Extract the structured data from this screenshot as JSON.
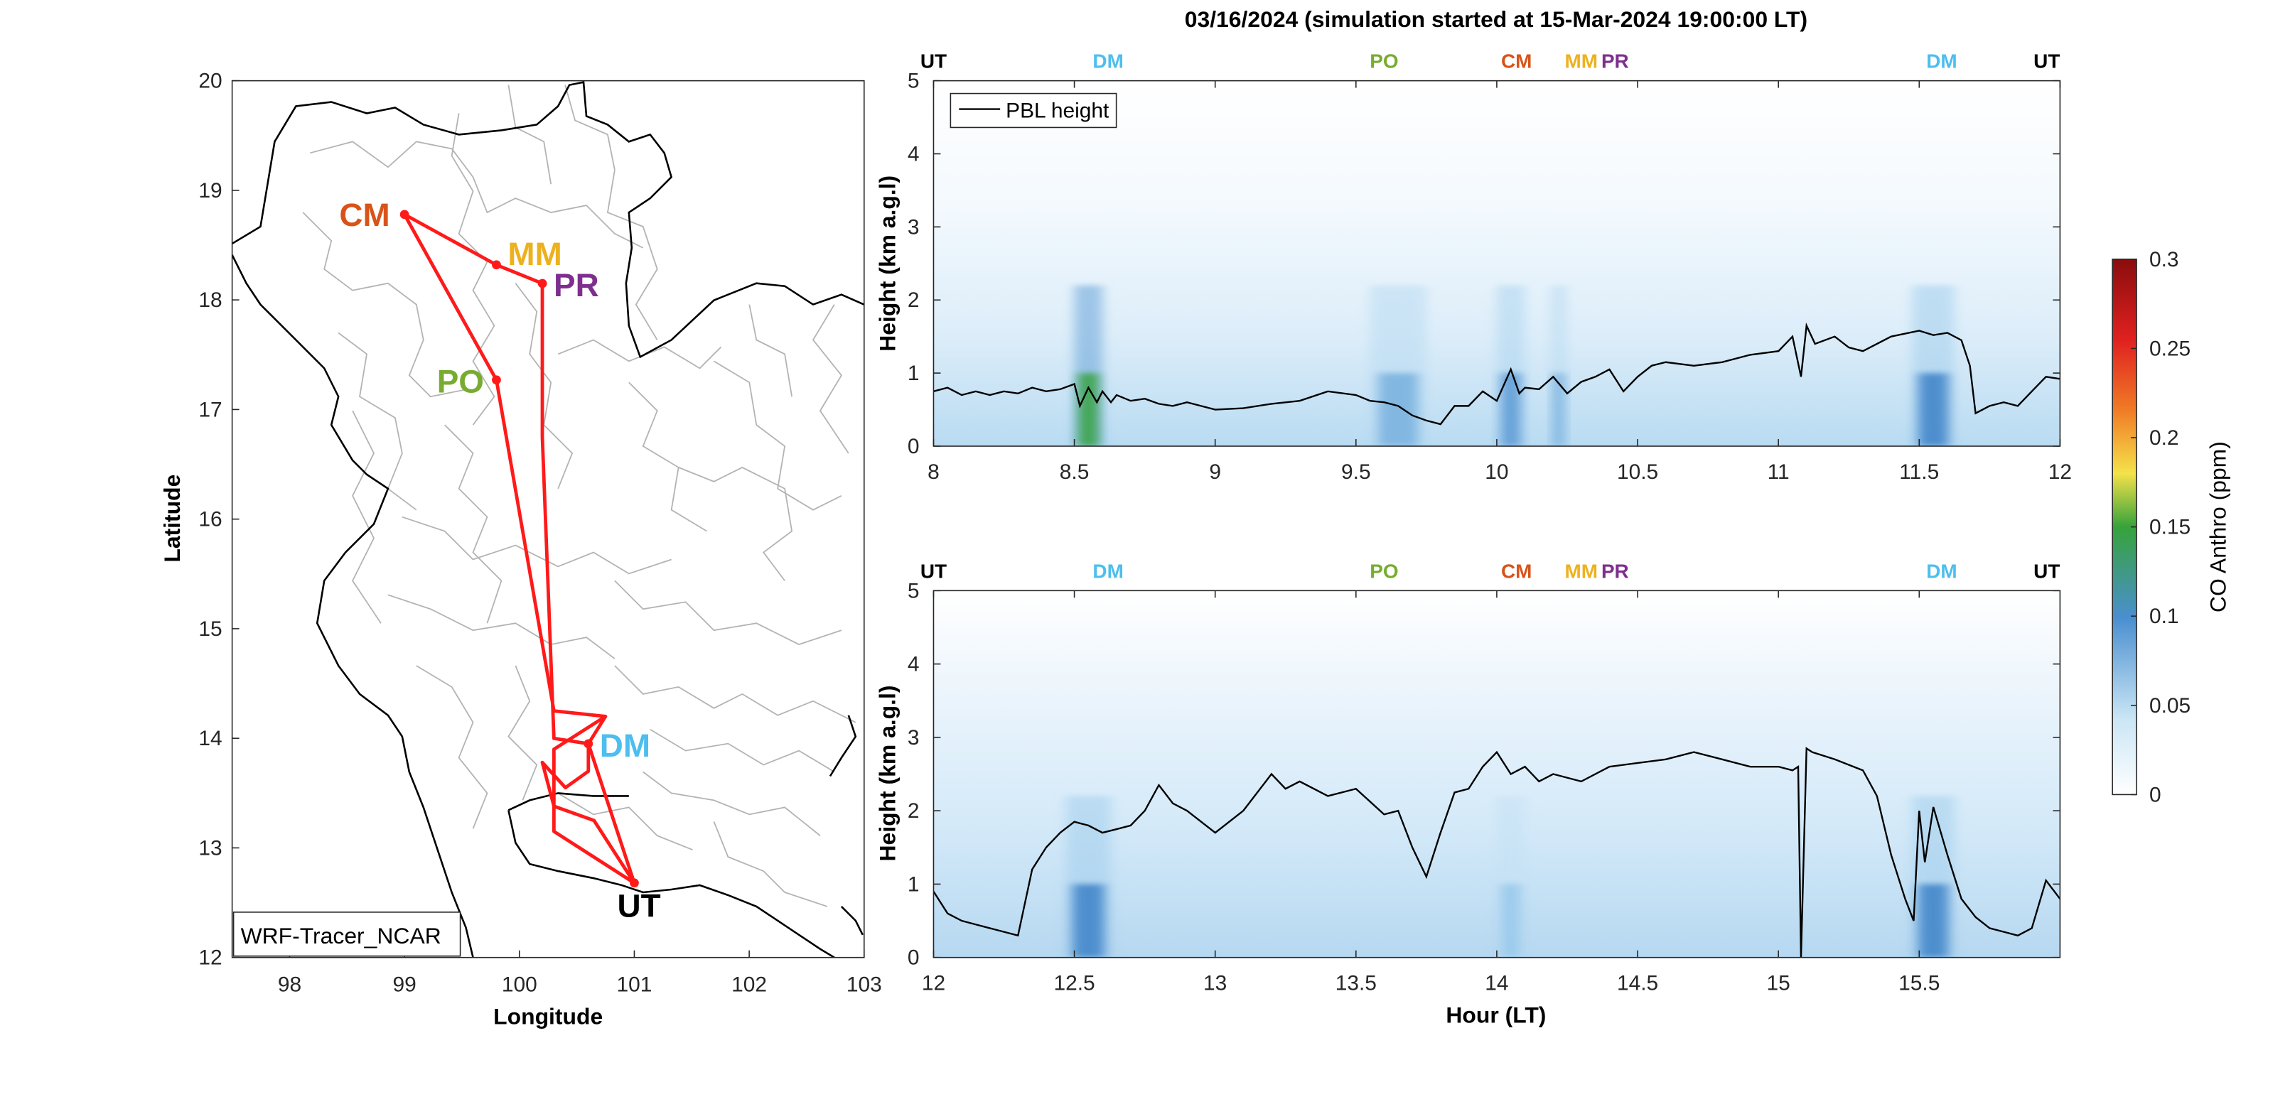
{
  "figure": {
    "title": "03/16/2024 (simulation started at 15-Mar-2024 19:00:00 LT)"
  },
  "chart_data": [
    {
      "type": "map",
      "xlabel": "Longitude",
      "ylabel": "Latitude",
      "xlim": [
        97.5,
        103
      ],
      "ylim": [
        12,
        20
      ],
      "xticks": [
        "98",
        "99",
        "100",
        "101",
        "102",
        "103"
      ],
      "yticks": [
        "12",
        "13",
        "14",
        "15",
        "16",
        "17",
        "18",
        "19",
        "20"
      ],
      "legend_box": "WRF-Tracer_NCAR",
      "route_color": "#ff1a1a",
      "route": [
        [
          101.0,
          12.68
        ],
        [
          100.6,
          13.95
        ],
        [
          100.3,
          14.0
        ],
        [
          100.2,
          16.75
        ],
        [
          100.2,
          18.15
        ],
        [
          99.8,
          18.32
        ],
        [
          99.0,
          18.78
        ],
        [
          99.8,
          17.27
        ],
        [
          100.3,
          14.25
        ],
        [
          100.75,
          14.2
        ],
        [
          100.6,
          13.95
        ],
        [
          100.6,
          13.7
        ],
        [
          100.4,
          13.55
        ],
        [
          100.2,
          13.78
        ],
        [
          100.3,
          13.38
        ],
        [
          100.65,
          13.25
        ],
        [
          101.0,
          12.68
        ],
        [
          100.3,
          13.15
        ],
        [
          100.3,
          13.9
        ],
        [
          100.75,
          14.2
        ]
      ],
      "stations": [
        {
          "label": "CM",
          "lon": 99.0,
          "lat": 18.78,
          "color": "#d95319"
        },
        {
          "label": "MM",
          "lon": 99.8,
          "lat": 18.32,
          "color": "#edb120"
        },
        {
          "label": "PR",
          "lon": 100.2,
          "lat": 18.15,
          "color": "#7e2f8e"
        },
        {
          "label": "PO",
          "lon": 99.8,
          "lat": 17.27,
          "color": "#77ac30"
        },
        {
          "label": "DM",
          "lon": 100.6,
          "lat": 13.95,
          "color": "#4dbeee"
        },
        {
          "label": "UT",
          "lon": 101.0,
          "lat": 12.68,
          "color": "#000000"
        }
      ]
    },
    {
      "type": "heatmap",
      "xlabel": "",
      "ylabel": "Height (km a.g.l)",
      "xlim": [
        8,
        12
      ],
      "ylim": [
        0,
        5
      ],
      "xticks": [
        "8",
        "8.5",
        "9",
        "9.5",
        "10",
        "10.5",
        "11",
        "11.5",
        "12"
      ],
      "yticks": [
        "0",
        "1",
        "2",
        "3",
        "4",
        "5"
      ],
      "legend": "PBL height",
      "site_markers": [
        {
          "label": "UT",
          "x": 8.0,
          "color": "#000000"
        },
        {
          "label": "DM",
          "x": 8.62,
          "color": "#4dbeee"
        },
        {
          "label": "PO",
          "x": 9.6,
          "color": "#77ac30"
        },
        {
          "label": "CM",
          "x": 10.07,
          "color": "#d95319"
        },
        {
          "label": "MM",
          "x": 10.3,
          "color": "#edb120"
        },
        {
          "label": "PR",
          "x": 10.42,
          "color": "#7e2f8e"
        },
        {
          "label": "DM",
          "x": 11.58,
          "color": "#4dbeee"
        },
        {
          "label": "UT",
          "x": 11.97,
          "color": "#000000"
        }
      ],
      "pbl_height": {
        "x": [
          8.0,
          8.05,
          8.1,
          8.15,
          8.2,
          8.25,
          8.3,
          8.35,
          8.4,
          8.45,
          8.5,
          8.52,
          8.55,
          8.58,
          8.6,
          8.63,
          8.65,
          8.7,
          8.75,
          8.8,
          8.85,
          8.9,
          8.95,
          9.0,
          9.1,
          9.2,
          9.3,
          9.4,
          9.5,
          9.55,
          9.6,
          9.65,
          9.7,
          9.75,
          9.8,
          9.85,
          9.9,
          9.95,
          10.0,
          10.05,
          10.08,
          10.1,
          10.15,
          10.2,
          10.25,
          10.3,
          10.35,
          10.4,
          10.45,
          10.5,
          10.55,
          10.6,
          10.7,
          10.8,
          10.9,
          11.0,
          11.05,
          11.08,
          11.1,
          11.13,
          11.2,
          11.25,
          11.3,
          11.4,
          11.5,
          11.55,
          11.6,
          11.65,
          11.68,
          11.7,
          11.75,
          11.8,
          11.85,
          11.9,
          11.95,
          12.0
        ],
        "y": [
          0.75,
          0.8,
          0.7,
          0.75,
          0.7,
          0.75,
          0.72,
          0.8,
          0.75,
          0.78,
          0.85,
          0.55,
          0.8,
          0.6,
          0.75,
          0.6,
          0.7,
          0.62,
          0.65,
          0.58,
          0.55,
          0.6,
          0.55,
          0.5,
          0.52,
          0.58,
          0.62,
          0.75,
          0.7,
          0.62,
          0.6,
          0.55,
          0.42,
          0.35,
          0.3,
          0.55,
          0.55,
          0.75,
          0.62,
          1.05,
          0.72,
          0.8,
          0.78,
          0.95,
          0.72,
          0.88,
          0.95,
          1.05,
          0.75,
          0.95,
          1.1,
          1.15,
          1.1,
          1.15,
          1.25,
          1.3,
          1.5,
          0.95,
          1.65,
          1.4,
          1.5,
          1.35,
          1.3,
          1.5,
          1.58,
          1.52,
          1.55,
          1.45,
          1.1,
          0.45,
          0.55,
          0.6,
          0.55,
          0.75,
          0.95,
          0.92
        ]
      },
      "co_plumes": [
        {
          "x": 8.55,
          "width": 0.1,
          "peak_ppm": 0.12
        },
        {
          "x": 9.65,
          "width": 0.2,
          "peak_ppm": 0.06
        },
        {
          "x": 10.05,
          "width": 0.1,
          "peak_ppm": 0.07
        },
        {
          "x": 10.22,
          "width": 0.06,
          "peak_ppm": 0.06
        },
        {
          "x": 11.55,
          "width": 0.15,
          "peak_ppm": 0.08
        }
      ]
    },
    {
      "type": "heatmap",
      "xlabel": "Hour (LT)",
      "ylabel": "Height (km a.g.l)",
      "xlim": [
        12,
        16
      ],
      "ylim": [
        0,
        5
      ],
      "xticks": [
        "12",
        "12.5",
        "13",
        "13.5",
        "14",
        "14.5",
        "15",
        "15.5"
      ],
      "yticks": [
        "0",
        "1",
        "2",
        "3",
        "4",
        "5"
      ],
      "site_markers": [
        {
          "label": "UT",
          "x": 12.0,
          "color": "#000000"
        },
        {
          "label": "DM",
          "x": 12.62,
          "color": "#4dbeee"
        },
        {
          "label": "PO",
          "x": 13.6,
          "color": "#77ac30"
        },
        {
          "label": "CM",
          "x": 14.07,
          "color": "#d95319"
        },
        {
          "label": "MM",
          "x": 14.3,
          "color": "#edb120"
        },
        {
          "label": "PR",
          "x": 14.42,
          "color": "#7e2f8e"
        },
        {
          "label": "DM",
          "x": 15.58,
          "color": "#4dbeee"
        },
        {
          "label": "UT",
          "x": 15.97,
          "color": "#000000"
        }
      ],
      "pbl_height": {
        "x": [
          12.0,
          12.05,
          12.1,
          12.15,
          12.2,
          12.25,
          12.3,
          12.35,
          12.4,
          12.45,
          12.5,
          12.55,
          12.6,
          12.65,
          12.7,
          12.75,
          12.8,
          12.85,
          12.9,
          13.0,
          13.1,
          13.2,
          13.25,
          13.3,
          13.4,
          13.5,
          13.6,
          13.65,
          13.7,
          13.75,
          13.8,
          13.85,
          13.9,
          13.95,
          14.0,
          14.05,
          14.1,
          14.15,
          14.2,
          14.3,
          14.4,
          14.5,
          14.6,
          14.7,
          14.8,
          14.9,
          15.0,
          15.05,
          15.07,
          15.08,
          15.1,
          15.12,
          15.2,
          15.3,
          15.35,
          15.4,
          15.45,
          15.48,
          15.5,
          15.52,
          15.55,
          15.6,
          15.65,
          15.7,
          15.75,
          15.8,
          15.85,
          15.9,
          15.95,
          16.0
        ],
        "y": [
          0.9,
          0.6,
          0.5,
          0.45,
          0.4,
          0.35,
          0.3,
          1.2,
          1.5,
          1.7,
          1.85,
          1.8,
          1.7,
          1.75,
          1.8,
          2.0,
          2.35,
          2.1,
          2.0,
          1.7,
          2.0,
          2.5,
          2.3,
          2.4,
          2.2,
          2.3,
          1.95,
          2.0,
          1.5,
          1.1,
          1.7,
          2.25,
          2.3,
          2.6,
          2.8,
          2.5,
          2.6,
          2.4,
          2.5,
          2.4,
          2.6,
          2.65,
          2.7,
          2.8,
          2.7,
          2.6,
          2.6,
          2.55,
          2.6,
          0.0,
          2.85,
          2.8,
          2.7,
          2.55,
          2.2,
          1.4,
          0.8,
          0.5,
          2.0,
          1.3,
          2.05,
          1.4,
          0.8,
          0.55,
          0.4,
          0.35,
          0.3,
          0.4,
          1.05,
          0.8
        ]
      },
      "co_plumes": [
        {
          "x": 12.55,
          "width": 0.16,
          "peak_ppm": 0.08
        },
        {
          "x": 14.05,
          "width": 0.1,
          "peak_ppm": 0.05
        },
        {
          "x": 15.55,
          "width": 0.15,
          "peak_ppm": 0.08
        }
      ]
    },
    {
      "type": "colorbar",
      "label": "CO Anthro (ppm)",
      "ticks": [
        "0",
        "0.05",
        "0.1",
        "0.15",
        "0.2",
        "0.25",
        "0.3"
      ],
      "range": [
        0,
        0.3
      ],
      "colors": [
        "#ffffff",
        "#cbe6f5",
        "#4a8fd0",
        "#36a33a",
        "#f5e24a",
        "#f07a26",
        "#e02020",
        "#8a0d0d"
      ]
    }
  ]
}
